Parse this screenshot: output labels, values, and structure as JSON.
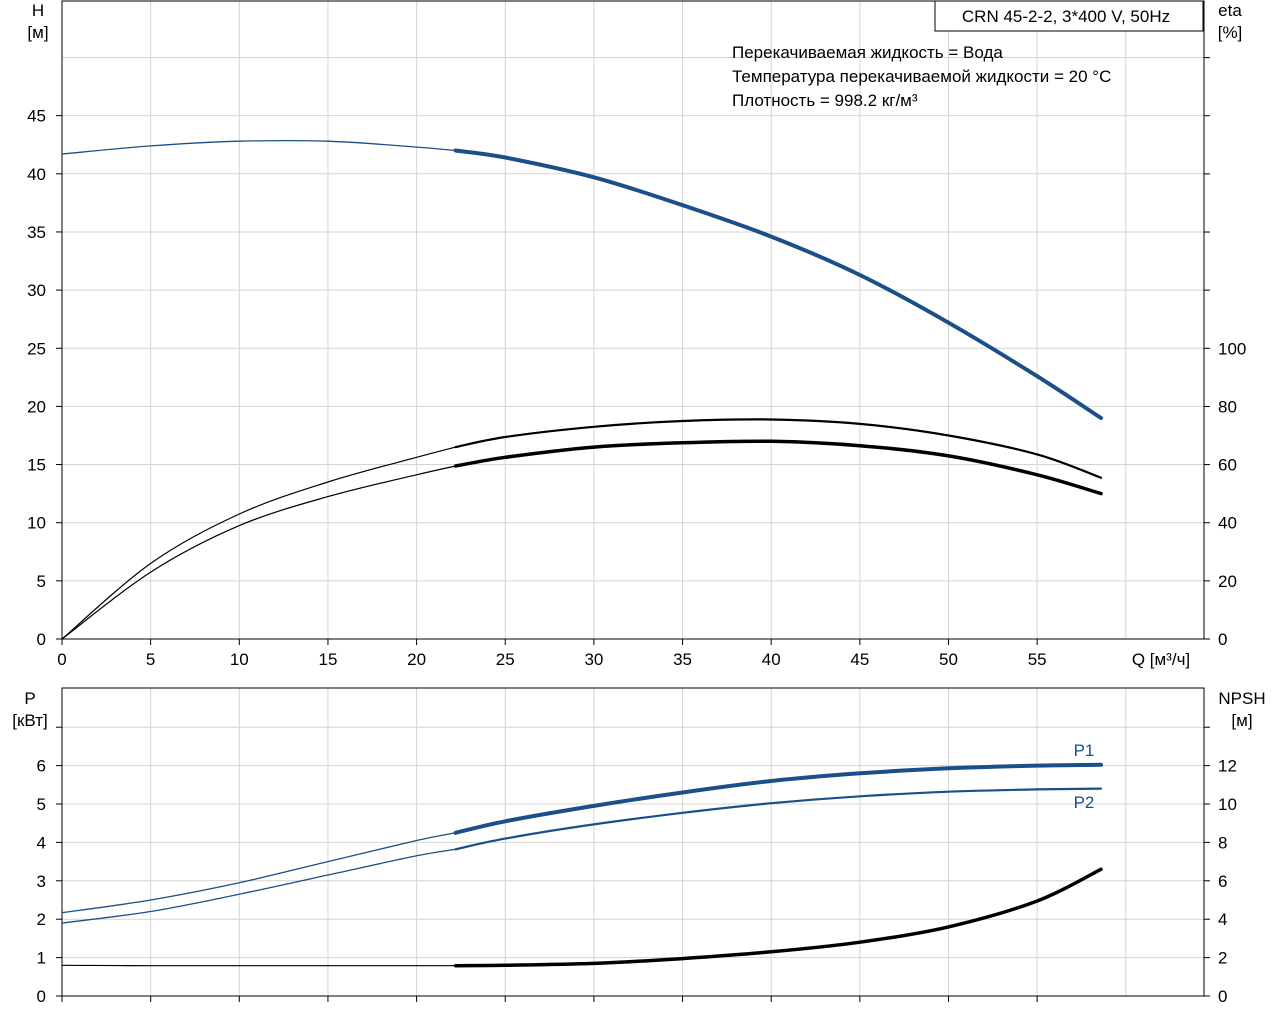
{
  "chart_data": [
    {
      "type": "line",
      "panel": "head_efficiency",
      "ylabel_left": [
        "H",
        "[м]"
      ],
      "ylabel_right": [
        "eta",
        "[%]"
      ],
      "xlabel": "Q [м³/ч]",
      "x_range": [
        0,
        60
      ],
      "x_ticks": [
        0,
        5,
        10,
        15,
        20,
        25,
        30,
        35,
        40,
        45,
        50,
        55
      ],
      "y_left_range": [
        0,
        45
      ],
      "y_left_ticks": [
        0,
        5,
        10,
        15,
        20,
        25,
        30,
        35,
        40,
        45
      ],
      "y_right_ticks": [
        0,
        20,
        40,
        60,
        80,
        100
      ],
      "grid": true,
      "model_label": "CRN 45-2-2, 3*400 V, 50Hz",
      "info_lines": [
        "Перекачиваемая жидкость = Вода",
        "Температура перекачиваемой жидкости = 20 °C",
        "Плотность = 998.2 кг/м³"
      ],
      "series": [
        {
          "color": "#1a4f8a",
          "axis": "left",
          "operating_range_start": 22.2,
          "x": [
            0,
            5,
            10,
            15,
            20,
            22.2,
            25,
            30,
            35,
            40,
            45,
            50,
            55,
            58.6
          ],
          "values": [
            41.7,
            42.4,
            42.8,
            42.8,
            42.3,
            42.0,
            41.4,
            39.7,
            37.3,
            34.6,
            31.3,
            27.2,
            22.6,
            19.0
          ]
        },
        {
          "color": "#000000",
          "axis": "right",
          "operating_range_start": 22.2,
          "x": [
            0,
            5,
            10,
            15,
            20,
            22.2,
            25,
            30,
            35,
            40,
            45,
            50,
            55,
            58.6
          ],
          "values": [
            0,
            26,
            43,
            54,
            62.5,
            66,
            69.5,
            73,
            75,
            75.5,
            74,
            70,
            63.5,
            55.5
          ]
        },
        {
          "color": "#000000",
          "axis": "right",
          "operating_range_start": 22.2,
          "x": [
            0,
            5,
            10,
            15,
            20,
            22.2,
            25,
            30,
            35,
            40,
            45,
            50,
            55,
            58.6
          ],
          "values": [
            0,
            23,
            39,
            49,
            56.5,
            59.5,
            62.5,
            66,
            67.5,
            68,
            66.5,
            63,
            56.5,
            50
          ]
        }
      ]
    },
    {
      "type": "line",
      "panel": "power_npsh",
      "ylabel_left": [
        "P",
        "[кВт]"
      ],
      "ylabel_right": [
        "NPSH",
        "[м]"
      ],
      "x_range": [
        0,
        60
      ],
      "y_left_range": [
        0,
        7
      ],
      "y_left_ticks": [
        0,
        1,
        2,
        3,
        4,
        5,
        6
      ],
      "y_right_ticks": [
        0,
        2,
        4,
        6,
        8,
        10,
        12
      ],
      "grid": true,
      "series": [
        {
          "name": "P1",
          "color": "#1a4f8a",
          "axis": "left",
          "operating_range_start": 22.2,
          "x": [
            0,
            5,
            10,
            15,
            20,
            22.2,
            25,
            30,
            35,
            40,
            45,
            50,
            55,
            58.6
          ],
          "values": [
            2.17,
            2.5,
            2.95,
            3.5,
            4.05,
            4.25,
            4.55,
            4.95,
            5.3,
            5.6,
            5.8,
            5.93,
            6.0,
            6.02
          ]
        },
        {
          "name": "P2",
          "color": "#1a4f8a",
          "axis": "left",
          "operating_range_start": 22.2,
          "x": [
            0,
            5,
            10,
            15,
            20,
            22.2,
            25,
            30,
            35,
            40,
            45,
            50,
            55,
            58.6
          ],
          "values": [
            1.9,
            2.2,
            2.65,
            3.15,
            3.65,
            3.82,
            4.1,
            4.47,
            4.77,
            5.02,
            5.2,
            5.32,
            5.38,
            5.4
          ]
        },
        {
          "color": "#000000",
          "axis": "right",
          "operating_range_start": 22.2,
          "x": [
            0,
            5,
            10,
            15,
            20,
            22.2,
            25,
            30,
            35,
            40,
            45,
            50,
            55,
            58.6
          ],
          "values": [
            1.6,
            1.58,
            1.58,
            1.58,
            1.58,
            1.58,
            1.6,
            1.7,
            1.95,
            2.3,
            2.8,
            3.6,
            4.95,
            6.6
          ]
        }
      ]
    }
  ]
}
